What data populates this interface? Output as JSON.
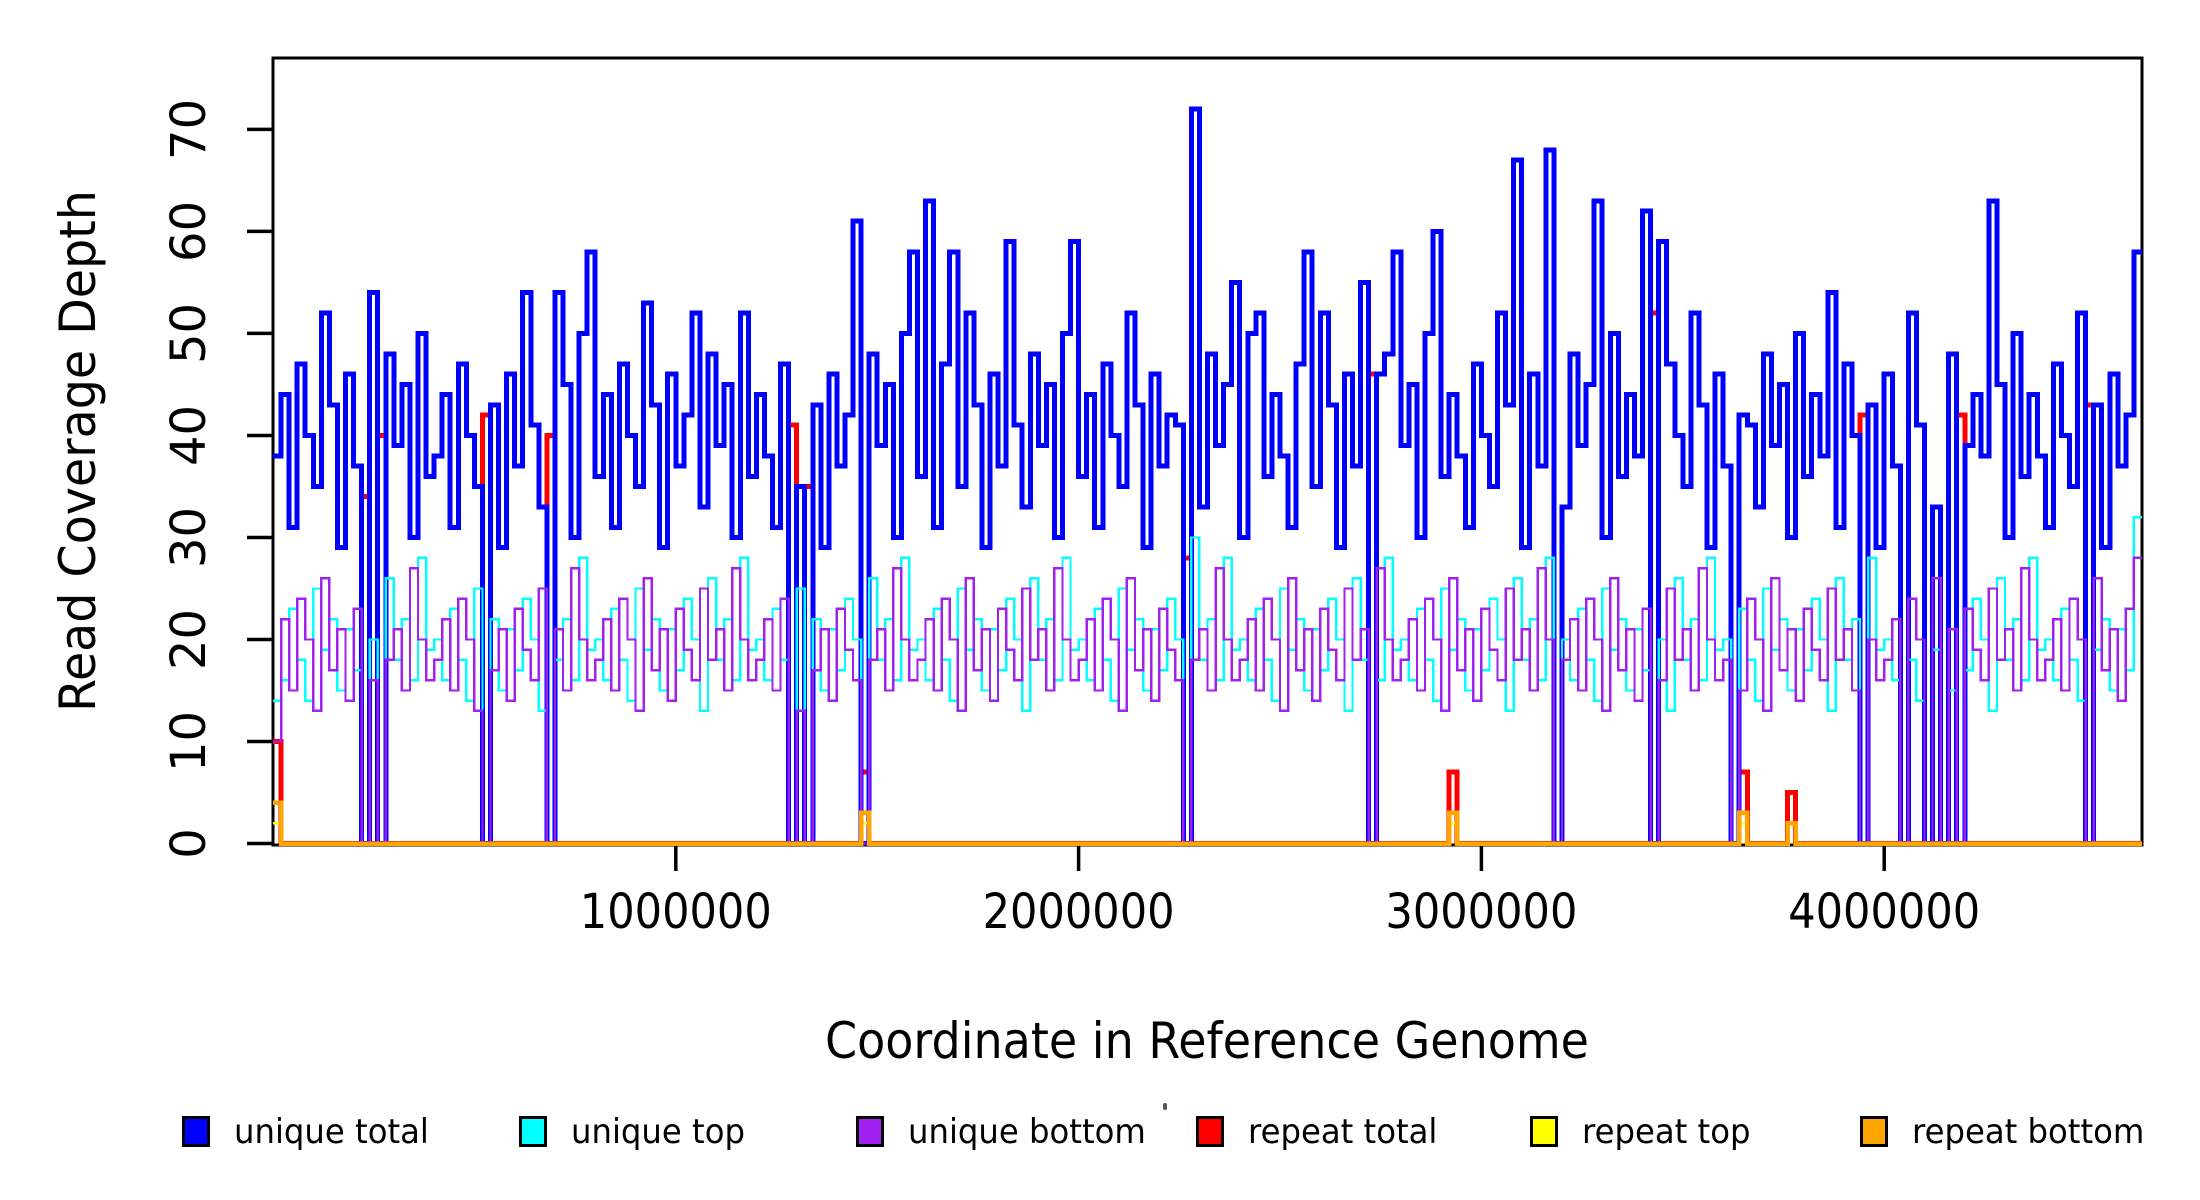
{
  "figure": {
    "background": "#ffffff",
    "xlabel": "Coordinate in Reference Genome",
    "ylabel": "Read Coverage Depth"
  },
  "chart_data": {
    "type": "line",
    "style": "step",
    "title": "",
    "xlabel": "Coordinate in Reference Genome",
    "ylabel": "Read Coverage Depth",
    "grid": false,
    "legend_position": "bottom",
    "x_start": 0,
    "bin_size": 20000,
    "n_bins": 232,
    "xlim": [
      0,
      4640000
    ],
    "ylim": [
      0,
      77
    ],
    "x_ticks": [
      {
        "value": 1000000,
        "label": "1000000"
      },
      {
        "value": 2000000,
        "label": "2000000"
      },
      {
        "value": 3000000,
        "label": "3000000"
      },
      {
        "value": 4000000,
        "label": "4000000"
      }
    ],
    "y_ticks": [
      {
        "value": 0,
        "label": "0"
      },
      {
        "value": 10,
        "label": "10"
      },
      {
        "value": 20,
        "label": "20"
      },
      {
        "value": 30,
        "label": "30"
      },
      {
        "value": 40,
        "label": "40"
      },
      {
        "value": 50,
        "label": "50"
      },
      {
        "value": 60,
        "label": "60"
      },
      {
        "value": 70,
        "label": "70"
      }
    ],
    "draw_order": [
      "repeat_total",
      "unique_total",
      "unique_top",
      "unique_bottom",
      "repeat_top",
      "repeat_bottom"
    ],
    "series": {
      "unique_total": {
        "label": "unique total",
        "color": "#0000FF",
        "line_width": 5,
        "values": [
          38,
          44,
          31,
          47,
          40,
          35,
          52,
          43,
          29,
          46,
          37,
          0,
          54,
          0,
          48,
          39,
          45,
          30,
          50,
          36,
          38,
          44,
          31,
          47,
          40,
          35,
          0,
          43,
          29,
          46,
          37,
          54,
          41,
          33,
          0,
          54,
          45,
          30,
          50,
          58,
          36,
          44,
          31,
          47,
          40,
          35,
          53,
          43,
          29,
          46,
          37,
          42,
          52,
          33,
          48,
          39,
          45,
          30,
          52,
          36,
          44,
          38,
          31,
          47,
          0,
          35,
          0,
          43,
          29,
          46,
          37,
          42,
          61,
          0,
          48,
          39,
          45,
          30,
          50,
          58,
          36,
          63,
          31,
          47,
          58,
          35,
          52,
          43,
          29,
          46,
          37,
          59,
          41,
          33,
          48,
          39,
          45,
          30,
          50,
          59,
          36,
          44,
          31,
          47,
          40,
          35,
          52,
          43,
          29,
          46,
          37,
          42,
          41,
          0,
          72,
          33,
          48,
          39,
          45,
          55,
          30,
          50,
          52,
          36,
          44,
          38,
          31,
          47,
          58,
          35,
          52,
          43,
          29,
          46,
          37,
          55,
          0,
          46,
          48,
          58,
          39,
          45,
          30,
          50,
          60,
          36,
          44,
          38,
          31,
          47,
          40,
          35,
          52,
          43,
          67,
          29,
          46,
          37,
          68,
          0,
          33,
          48,
          39,
          45,
          63,
          30,
          50,
          36,
          44,
          38,
          62,
          0,
          59,
          47,
          40,
          35,
          52,
          43,
          29,
          46,
          37,
          0,
          42,
          41,
          33,
          48,
          39,
          45,
          30,
          50,
          36,
          44,
          38,
          54,
          31,
          47,
          40,
          0,
          43,
          29,
          46,
          37,
          0,
          52,
          41,
          0,
          33,
          0,
          48,
          0,
          39,
          44,
          38,
          63,
          45,
          30,
          50,
          36,
          44,
          38,
          31,
          47,
          40,
          35,
          52,
          0,
          43,
          29,
          46,
          37,
          42,
          58
        ]
      },
      "unique_top": {
        "label": "unique top",
        "color": "#00FFFF",
        "line_width": 2.4,
        "values": [
          14,
          16,
          23,
          18,
          14,
          25,
          19,
          22,
          15,
          21,
          17,
          0,
          20,
          0,
          26,
          18,
          22,
          16,
          28,
          19,
          20,
          16,
          23,
          18,
          14,
          25,
          0,
          22,
          15,
          21,
          17,
          24,
          20,
          13,
          0,
          18,
          22,
          16,
          28,
          19,
          20,
          16,
          23,
          18,
          14,
          25,
          19,
          22,
          15,
          21,
          17,
          24,
          20,
          13,
          26,
          18,
          22,
          16,
          28,
          19,
          20,
          16,
          23,
          18,
          0,
          25,
          0,
          22,
          15,
          21,
          17,
          24,
          20,
          0,
          26,
          18,
          22,
          16,
          28,
          19,
          20,
          16,
          23,
          18,
          14,
          25,
          19,
          22,
          15,
          21,
          17,
          24,
          20,
          13,
          26,
          18,
          22,
          16,
          28,
          19,
          20,
          16,
          23,
          18,
          14,
          25,
          19,
          22,
          15,
          21,
          17,
          24,
          20,
          0,
          30,
          18,
          22,
          16,
          28,
          19,
          20,
          16,
          23,
          18,
          14,
          25,
          19,
          22,
          15,
          21,
          17,
          24,
          20,
          13,
          26,
          18,
          0,
          16,
          28,
          19,
          20,
          16,
          23,
          18,
          14,
          25,
          19,
          22,
          15,
          21,
          17,
          24,
          20,
          13,
          26,
          18,
          22,
          16,
          28,
          0,
          20,
          16,
          23,
          18,
          14,
          25,
          19,
          22,
          15,
          21,
          17,
          0,
          20,
          13,
          26,
          18,
          22,
          16,
          28,
          19,
          20,
          0,
          23,
          18,
          14,
          25,
          19,
          22,
          15,
          21,
          17,
          24,
          20,
          13,
          26,
          18,
          22,
          0,
          28,
          19,
          20,
          16,
          0,
          18,
          14,
          0,
          19,
          0,
          15,
          0,
          17,
          24,
          20,
          13,
          26,
          18,
          22,
          16,
          28,
          19,
          20,
          16,
          23,
          18,
          14,
          0,
          19,
          22,
          15,
          21,
          17,
          32
        ]
      },
      "unique_bottom": {
        "label": "unique bottom",
        "color": "#A020F0",
        "line_width": 2.4,
        "values": [
          10,
          22,
          15,
          24,
          20,
          13,
          26,
          17,
          21,
          14,
          23,
          0,
          16,
          0,
          18,
          21,
          15,
          27,
          20,
          16,
          18,
          22,
          15,
          24,
          20,
          13,
          0,
          17,
          21,
          14,
          23,
          19,
          16,
          25,
          0,
          21,
          15,
          27,
          20,
          16,
          18,
          22,
          15,
          24,
          20,
          13,
          26,
          17,
          21,
          14,
          23,
          19,
          16,
          25,
          18,
          21,
          15,
          27,
          20,
          16,
          18,
          22,
          15,
          24,
          0,
          13,
          0,
          17,
          21,
          14,
          23,
          19,
          16,
          0,
          18,
          21,
          15,
          27,
          20,
          16,
          18,
          22,
          15,
          24,
          20,
          13,
          26,
          17,
          21,
          14,
          23,
          19,
          16,
          25,
          18,
          21,
          15,
          27,
          20,
          16,
          18,
          22,
          15,
          24,
          20,
          13,
          26,
          17,
          21,
          14,
          23,
          19,
          16,
          0,
          18,
          21,
          15,
          27,
          20,
          16,
          18,
          22,
          15,
          24,
          20,
          13,
          26,
          17,
          21,
          14,
          23,
          19,
          16,
          25,
          18,
          21,
          0,
          27,
          20,
          16,
          18,
          22,
          15,
          24,
          20,
          13,
          26,
          17,
          21,
          14,
          23,
          19,
          16,
          25,
          18,
          21,
          15,
          27,
          20,
          0,
          18,
          22,
          15,
          24,
          20,
          13,
          26,
          17,
          21,
          14,
          23,
          0,
          16,
          25,
          18,
          21,
          15,
          27,
          20,
          16,
          18,
          0,
          15,
          24,
          20,
          13,
          26,
          17,
          21,
          14,
          23,
          19,
          16,
          25,
          18,
          21,
          15,
          0,
          20,
          16,
          18,
          22,
          0,
          24,
          20,
          0,
          26,
          0,
          21,
          0,
          23,
          19,
          16,
          25,
          18,
          21,
          15,
          27,
          20,
          16,
          18,
          22,
          15,
          24,
          20,
          0,
          26,
          17,
          21,
          14,
          23,
          28
        ]
      },
      "repeat_total": {
        "label": "repeat total",
        "color": "#FF0000",
        "line_width": 5,
        "sparse": true,
        "default": 0,
        "overrides": {
          "0": 10,
          "11": 34,
          "13": 40,
          "26": 42,
          "34": 40,
          "64": 41,
          "66": 35,
          "73": 7,
          "113": 28,
          "136": 46,
          "146": 7,
          "171": 52,
          "182": 7,
          "188": 5,
          "197": 42,
          "209": 42,
          "225": 43
        }
      },
      "repeat_top": {
        "label": "repeat top",
        "color": "#FFFF00",
        "line_width": 2.4,
        "sparse": true,
        "default": 0,
        "overrides": {
          "0": 2,
          "73": 2,
          "146": 2,
          "182": 2,
          "188": 2
        }
      },
      "repeat_bottom": {
        "label": "repeat bottom",
        "color": "#FFA500",
        "line_width": 4.5,
        "sparse": true,
        "default": 0,
        "overrides": {
          "0": 4,
          "73": 3,
          "146": 3,
          "182": 3,
          "188": 2
        }
      }
    },
    "legend_order": [
      "unique_total",
      "unique_top",
      "unique_bottom",
      "repeat_total",
      "repeat_top",
      "repeat_bottom"
    ]
  }
}
